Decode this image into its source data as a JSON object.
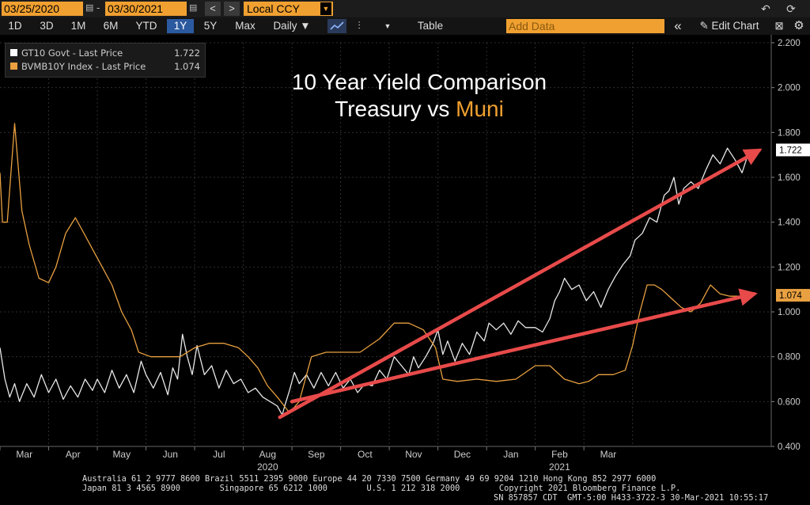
{
  "toolbar": {
    "start_date": "03/25/2020",
    "end_date": "03/30/2021",
    "prev_label": "<",
    "next_label": ">",
    "currency": "Local CCY",
    "periods": [
      "1D",
      "3D",
      "1M",
      "6M",
      "YTD",
      "1Y",
      "5Y",
      "Max"
    ],
    "active_period": "1Y",
    "frequency": "Daily ▼",
    "table_label": "Table",
    "add_data_placeholder": "Add Data",
    "edit_chart_label": "Edit Chart",
    "collapse_label": "«",
    "pencil_icon": "pencil-icon",
    "undo_icon": "undo-icon",
    "refresh_icon": "refresh-icon",
    "gear_icon": "gear-icon"
  },
  "legend": {
    "items": [
      {
        "name": "GT10 Govt - Last Price",
        "value": "1.722",
        "color": "#ffffff"
      },
      {
        "name": "BVMB10Y Index - Last Price",
        "value": "1.074",
        "color": "#e8a040"
      }
    ]
  },
  "titles": {
    "line1": "10 Year Yield Comparison",
    "line2_prefix": "Treasury vs ",
    "line2_highlight": "Muni"
  },
  "chart_data": {
    "type": "line",
    "x_months": [
      "Mar",
      "Apr",
      "May",
      "Jun",
      "Jul",
      "Aug",
      "Sep",
      "Oct",
      "Nov",
      "Dec",
      "Jan",
      "Feb",
      "Mar"
    ],
    "x_year_labels": [
      "2020",
      "2021"
    ],
    "y_ticks": [
      "2.200",
      "2.000",
      "1.800",
      "1.600",
      "1.400",
      "1.200",
      "1.000",
      "0.800",
      "0.600",
      "0.400"
    ],
    "ylim": [
      0.4,
      2.2
    ],
    "grid": true,
    "last_value_labels": [
      "1.722",
      "1.074"
    ],
    "colors": {
      "treasury": "#e8e8e8",
      "muni": "#e8a040",
      "arrow": "#e84a4a"
    },
    "series": [
      {
        "name": "GT10 Govt - Last Price",
        "values": [
          [
            0.0,
            0.84
          ],
          [
            0.1,
            0.7
          ],
          [
            0.2,
            0.62
          ],
          [
            0.3,
            0.68
          ],
          [
            0.4,
            0.6
          ],
          [
            0.55,
            0.68
          ],
          [
            0.7,
            0.62
          ],
          [
            0.85,
            0.72
          ],
          [
            1.0,
            0.64
          ],
          [
            1.15,
            0.7
          ],
          [
            1.3,
            0.61
          ],
          [
            1.45,
            0.67
          ],
          [
            1.6,
            0.62
          ],
          [
            1.75,
            0.7
          ],
          [
            1.9,
            0.65
          ],
          [
            2.0,
            0.7
          ],
          [
            2.15,
            0.64
          ],
          [
            2.3,
            0.74
          ],
          [
            2.45,
            0.66
          ],
          [
            2.6,
            0.72
          ],
          [
            2.75,
            0.64
          ],
          [
            2.9,
            0.78
          ],
          [
            3.0,
            0.72
          ],
          [
            3.15,
            0.66
          ],
          [
            3.3,
            0.73
          ],
          [
            3.45,
            0.63
          ],
          [
            3.55,
            0.75
          ],
          [
            3.65,
            0.7
          ],
          [
            3.75,
            0.9
          ],
          [
            3.85,
            0.8
          ],
          [
            3.95,
            0.72
          ],
          [
            4.05,
            0.85
          ],
          [
            4.2,
            0.72
          ],
          [
            4.35,
            0.76
          ],
          [
            4.5,
            0.66
          ],
          [
            4.65,
            0.74
          ],
          [
            4.8,
            0.68
          ],
          [
            4.95,
            0.7
          ],
          [
            5.1,
            0.64
          ],
          [
            5.25,
            0.66
          ],
          [
            5.4,
            0.62
          ],
          [
            5.55,
            0.6
          ],
          [
            5.7,
            0.58
          ],
          [
            5.8,
            0.54
          ],
          [
            5.85,
            0.58
          ],
          [
            5.95,
            0.65
          ],
          [
            6.05,
            0.73
          ],
          [
            6.15,
            0.68
          ],
          [
            6.3,
            0.72
          ],
          [
            6.45,
            0.66
          ],
          [
            6.6,
            0.73
          ],
          [
            6.75,
            0.67
          ],
          [
            6.9,
            0.73
          ],
          [
            7.05,
            0.66
          ],
          [
            7.2,
            0.7
          ],
          [
            7.35,
            0.64
          ],
          [
            7.5,
            0.68
          ],
          [
            7.65,
            0.67
          ],
          [
            7.8,
            0.74
          ],
          [
            7.95,
            0.7
          ],
          [
            8.1,
            0.8
          ],
          [
            8.25,
            0.76
          ],
          [
            8.4,
            0.72
          ],
          [
            8.5,
            0.8
          ],
          [
            8.6,
            0.75
          ],
          [
            8.75,
            0.8
          ],
          [
            8.9,
            0.86
          ],
          [
            9.0,
            0.92
          ],
          [
            9.1,
            0.81
          ],
          [
            9.2,
            0.87
          ],
          [
            9.35,
            0.78
          ],
          [
            9.5,
            0.86
          ],
          [
            9.65,
            0.81
          ],
          [
            9.8,
            0.91
          ],
          [
            9.95,
            0.87
          ],
          [
            10.05,
            0.95
          ],
          [
            10.2,
            0.92
          ],
          [
            10.35,
            0.95
          ],
          [
            10.5,
            0.9
          ],
          [
            10.65,
            0.96
          ],
          [
            10.8,
            0.93
          ],
          [
            11.0,
            0.93
          ],
          [
            11.15,
            0.91
          ],
          [
            11.3,
            0.97
          ],
          [
            11.4,
            1.05
          ],
          [
            11.5,
            1.09
          ],
          [
            11.6,
            1.15
          ],
          [
            11.75,
            1.1
          ],
          [
            11.9,
            1.12
          ],
          [
            12.05,
            1.05
          ],
          [
            12.2,
            1.09
          ],
          [
            12.35,
            1.02
          ],
          [
            12.5,
            1.1
          ],
          [
            12.65,
            1.16
          ],
          [
            12.8,
            1.21
          ],
          [
            12.95,
            1.25
          ],
          [
            13.05,
            1.32
          ],
          [
            13.2,
            1.35
          ],
          [
            13.35,
            1.42
          ],
          [
            13.5,
            1.4
          ],
          [
            13.65,
            1.52
          ],
          [
            13.75,
            1.54
          ],
          [
            13.85,
            1.6
          ],
          [
            13.95,
            1.48
          ],
          [
            14.05,
            1.55
          ],
          [
            14.2,
            1.58
          ],
          [
            14.35,
            1.55
          ],
          [
            14.5,
            1.63
          ],
          [
            14.65,
            1.7
          ],
          [
            14.8,
            1.66
          ],
          [
            14.95,
            1.73
          ],
          [
            15.1,
            1.68
          ],
          [
            15.25,
            1.62
          ],
          [
            15.4,
            1.72
          ]
        ]
      },
      {
        "name": "BVMB10Y Index - Last Price",
        "values": [
          [
            0.0,
            1.62
          ],
          [
            0.05,
            1.4
          ],
          [
            0.15,
            1.4
          ],
          [
            0.3,
            1.84
          ],
          [
            0.45,
            1.45
          ],
          [
            0.6,
            1.3
          ],
          [
            0.8,
            1.15
          ],
          [
            1.0,
            1.13
          ],
          [
            1.15,
            1.2
          ],
          [
            1.35,
            1.35
          ],
          [
            1.55,
            1.42
          ],
          [
            1.7,
            1.36
          ],
          [
            1.9,
            1.28
          ],
          [
            2.1,
            1.2
          ],
          [
            2.3,
            1.12
          ],
          [
            2.5,
            1.0
          ],
          [
            2.7,
            0.92
          ],
          [
            2.85,
            0.82
          ],
          [
            3.1,
            0.8
          ],
          [
            3.4,
            0.8
          ],
          [
            3.7,
            0.8
          ],
          [
            4.0,
            0.84
          ],
          [
            4.3,
            0.86
          ],
          [
            4.6,
            0.86
          ],
          [
            4.9,
            0.84
          ],
          [
            5.1,
            0.8
          ],
          [
            5.3,
            0.75
          ],
          [
            5.5,
            0.67
          ],
          [
            5.7,
            0.62
          ],
          [
            5.95,
            0.55
          ],
          [
            6.15,
            0.6
          ],
          [
            6.4,
            0.8
          ],
          [
            6.7,
            0.82
          ],
          [
            7.0,
            0.82
          ],
          [
            7.4,
            0.82
          ],
          [
            7.8,
            0.88
          ],
          [
            8.1,
            0.95
          ],
          [
            8.4,
            0.95
          ],
          [
            8.7,
            0.92
          ],
          [
            8.95,
            0.84
          ],
          [
            9.1,
            0.7
          ],
          [
            9.4,
            0.69
          ],
          [
            9.8,
            0.7
          ],
          [
            10.2,
            0.69
          ],
          [
            10.6,
            0.7
          ],
          [
            11.0,
            0.76
          ],
          [
            11.3,
            0.76
          ],
          [
            11.6,
            0.7
          ],
          [
            11.9,
            0.68
          ],
          [
            12.1,
            0.69
          ],
          [
            12.3,
            0.72
          ],
          [
            12.6,
            0.72
          ],
          [
            12.85,
            0.74
          ],
          [
            13.0,
            0.85
          ],
          [
            13.15,
            1.0
          ],
          [
            13.3,
            1.12
          ],
          [
            13.45,
            1.12
          ],
          [
            13.6,
            1.1
          ],
          [
            13.8,
            1.06
          ],
          [
            14.0,
            1.02
          ],
          [
            14.2,
            1.0
          ],
          [
            14.4,
            1.04
          ],
          [
            14.6,
            1.12
          ],
          [
            14.8,
            1.08
          ],
          [
            15.0,
            1.07
          ],
          [
            15.2,
            1.07
          ],
          [
            15.4,
            1.074
          ]
        ]
      }
    ],
    "annotations": [
      {
        "type": "arrow",
        "from": [
          5.75,
          0.53
        ],
        "to": [
          15.6,
          1.72
        ]
      },
      {
        "type": "arrow",
        "from": [
          6.0,
          0.6
        ],
        "to": [
          15.5,
          1.08
        ]
      }
    ]
  },
  "footer": {
    "line1": "Australia 61 2 9777 8600 Brazil 5511 2395 9000 Europe 44 20 7330 7500 Germany 49 69 9204 1210 Hong Kong 852 2977 6000",
    "line2": "Japan 81 3 4565 8900        Singapore 65 6212 1000        U.S. 1 212 318 2000        Copyright 2021 Bloomberg Finance L.P.",
    "line3": "SN 857857 CDT  GMT-5:00 H433-3722-3 30-Mar-2021 10:55:17"
  }
}
